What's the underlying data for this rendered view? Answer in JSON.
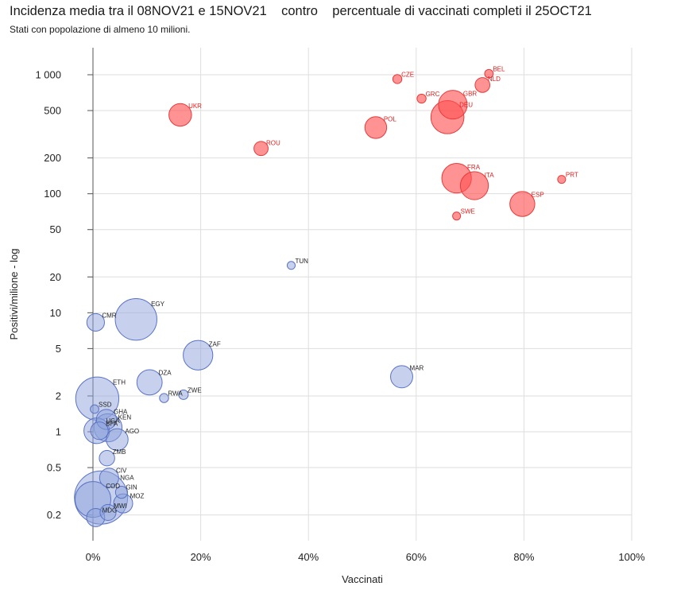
{
  "title": "Incidenza media tra il 08NOV21 e 15NOV21    contro    percentuale di vaccinati completi il 25OCT21",
  "subtitle": "Stati con popolazione di almeno 10 milioni.",
  "chart_data": {
    "type": "scatter",
    "variant": "bubble",
    "xlabel": "Vaccinati",
    "ylabel": "Positivi/milione - log",
    "x_ticks": [
      "0%",
      "20%",
      "40%",
      "60%",
      "80%",
      "100%"
    ],
    "y_ticks": [
      "0.2",
      "0.5",
      "1",
      "2",
      "5",
      "10",
      "20",
      "50",
      "100",
      "200",
      "500",
      "1 000"
    ],
    "xlim": [
      0,
      100
    ],
    "ylim": [
      0.15,
      1400
    ],
    "y_scale": "log",
    "grid": true,
    "colors": {
      "europe": "#ff5050",
      "other": "#8fa3dc",
      "europe_label": "#e02020",
      "other_label": "#222222"
    },
    "points": [
      {
        "label": "BEL",
        "x": 73.5,
        "y": 1020,
        "size": 0.4,
        "group": "europe"
      },
      {
        "label": "NLD",
        "x": 72.3,
        "y": 820,
        "size": 1.2,
        "group": "europe"
      },
      {
        "label": "CZE",
        "x": 56.5,
        "y": 920,
        "size": 0.45,
        "group": "europe"
      },
      {
        "label": "GRC",
        "x": 61.0,
        "y": 630,
        "size": 0.45,
        "group": "europe"
      },
      {
        "label": "GBR",
        "x": 66.8,
        "y": 560,
        "size": 4.5,
        "group": "europe"
      },
      {
        "label": "DEU",
        "x": 65.8,
        "y": 440,
        "size": 6.0,
        "group": "europe"
      },
      {
        "label": "UKR",
        "x": 16.2,
        "y": 460,
        "size": 2.8,
        "group": "europe"
      },
      {
        "label": "POL",
        "x": 52.5,
        "y": 360,
        "size": 2.6,
        "group": "europe"
      },
      {
        "label": "ROU",
        "x": 31.2,
        "y": 240,
        "size": 1.1,
        "group": "europe"
      },
      {
        "label": "FRA",
        "x": 67.5,
        "y": 135,
        "size": 4.8,
        "group": "europe"
      },
      {
        "label": "ITA",
        "x": 70.8,
        "y": 117,
        "size": 4.3,
        "group": "europe"
      },
      {
        "label": "PRT",
        "x": 87.0,
        "y": 132,
        "size": 0.35,
        "group": "europe"
      },
      {
        "label": "ESP",
        "x": 79.7,
        "y": 82,
        "size": 3.4,
        "group": "europe"
      },
      {
        "label": "SWE",
        "x": 67.5,
        "y": 65,
        "size": 0.35,
        "group": "europe"
      },
      {
        "label": "TUN",
        "x": 36.8,
        "y": 25,
        "size": 0.35,
        "group": "other"
      },
      {
        "label": "CMR",
        "x": 0.5,
        "y": 8.3,
        "size": 1.7,
        "group": "other"
      },
      {
        "label": "EGY",
        "x": 8.0,
        "y": 8.8,
        "size": 9.5,
        "group": "other"
      },
      {
        "label": "ZAF",
        "x": 19.5,
        "y": 4.4,
        "size": 4.8,
        "group": "other"
      },
      {
        "label": "MAR",
        "x": 57.3,
        "y": 2.9,
        "size": 2.7,
        "group": "other"
      },
      {
        "label": "DZA",
        "x": 10.5,
        "y": 2.6,
        "size": 3.5,
        "group": "other"
      },
      {
        "label": "ETH",
        "x": 0.8,
        "y": 1.9,
        "size": 10.2,
        "group": "other"
      },
      {
        "label": "ZWE",
        "x": 16.8,
        "y": 2.05,
        "size": 0.5,
        "group": "other"
      },
      {
        "label": "RWA",
        "x": 13.2,
        "y": 1.92,
        "size": 0.45,
        "group": "other"
      },
      {
        "label": "SSD",
        "x": 0.3,
        "y": 1.55,
        "size": 0.4,
        "group": "other"
      },
      {
        "label": "GHA",
        "x": 2.5,
        "y": 1.27,
        "size": 2.2,
        "group": "other"
      },
      {
        "label": "KEN",
        "x": 2.8,
        "y": 1.08,
        "size": 4.3,
        "group": "other"
      },
      {
        "label": "UGA",
        "x": 0.7,
        "y": 1.02,
        "size": 3.6,
        "group": "other"
      },
      {
        "label": "BFA",
        "x": 1.2,
        "y": 1.02,
        "size": 1.7,
        "group": "other"
      },
      {
        "label": "AGO",
        "x": 4.5,
        "y": 0.86,
        "size": 2.6,
        "group": "other"
      },
      {
        "label": "ZMB",
        "x": 2.6,
        "y": 0.6,
        "size": 1.3,
        "group": "other"
      },
      {
        "label": "CIV",
        "x": 3.0,
        "y": 0.41,
        "size": 2.0,
        "group": "other"
      },
      {
        "label": "NGA",
        "x": 1.5,
        "y": 0.28,
        "size": 15.5,
        "group": "other"
      },
      {
        "label": "GIN",
        "x": 5.3,
        "y": 0.31,
        "size": 0.8,
        "group": "other"
      },
      {
        "label": "COD",
        "x": 0.0,
        "y": 0.27,
        "size": 7.0,
        "group": "other"
      },
      {
        "label": "MOZ",
        "x": 5.6,
        "y": 0.25,
        "size": 2.0,
        "group": "other"
      },
      {
        "label": "MWI",
        "x": 2.8,
        "y": 0.21,
        "size": 1.4,
        "group": "other"
      },
      {
        "label": "MDG",
        "x": 0.5,
        "y": 0.19,
        "size": 1.8,
        "group": "other"
      }
    ]
  }
}
